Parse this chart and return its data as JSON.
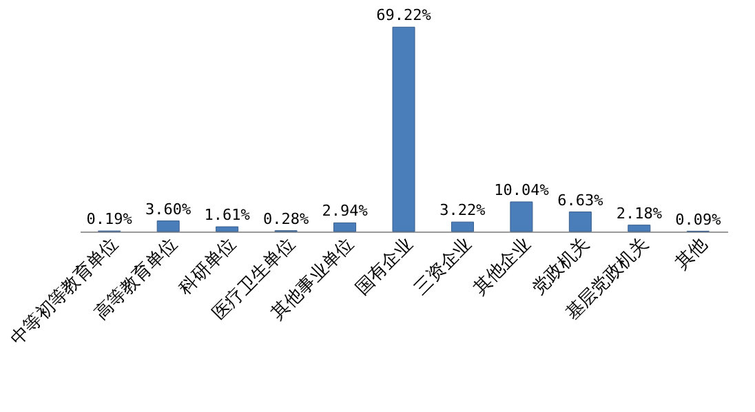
{
  "chart_data": {
    "type": "bar",
    "categories": [
      "中等初等教育单位",
      "高等教育单位",
      "科研单位",
      "医疗卫生单位",
      "其他事业单位",
      "国有企业",
      "三资企业",
      "其他企业",
      "党政机关",
      "基层党政机关",
      "其他"
    ],
    "values": [
      0.19,
      3.6,
      1.61,
      0.28,
      2.94,
      69.22,
      3.22,
      10.04,
      6.63,
      2.18,
      0.09
    ],
    "value_labels": [
      "0.19%",
      "3.60%",
      "1.61%",
      "0.28%",
      "2.94%",
      "69.22%",
      "3.22%",
      "10.04%",
      "6.63%",
      "2.18%",
      "0.09%"
    ],
    "color": "#4a7ebb",
    "grid": false,
    "tick_labels": "x"
  }
}
